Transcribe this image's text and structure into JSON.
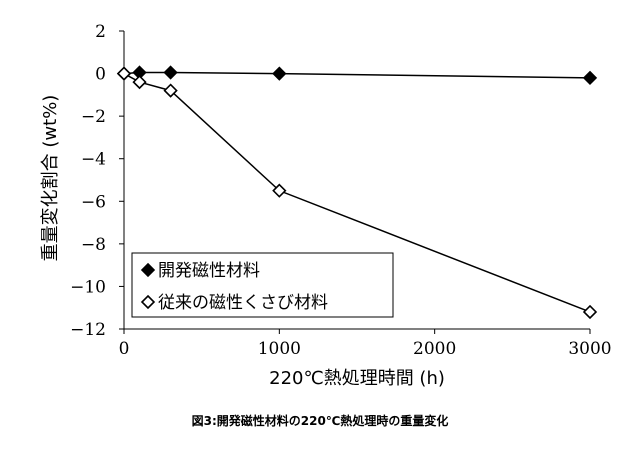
{
  "caption": "図3:開発磁性材料の220℃熱処理時の重量変化",
  "chart_data": {
    "type": "line",
    "xlabel": "220℃熱処理時間 (h)",
    "ylabel": "重量変化割合 (wt%)",
    "xlim": [
      0,
      3000
    ],
    "ylim": [
      -12,
      2
    ],
    "xticks": [
      "0",
      "1000",
      "2000",
      "3000"
    ],
    "yticks": [
      "2",
      "0",
      "-2",
      "-4",
      "-6",
      "-8",
      "-10",
      "-12"
    ],
    "grid": false,
    "legend_position": "bottom-left",
    "series": [
      {
        "name": "開発磁性材料",
        "marker": "filled-diamond",
        "color": "#000000",
        "x": [
          0,
          100,
          300,
          1000,
          3000
        ],
        "y": [
          0,
          0.05,
          0.05,
          0,
          -0.2
        ]
      },
      {
        "name": "従来の磁性くさび材料",
        "marker": "open-diamond",
        "color": "#000000",
        "x": [
          0,
          100,
          300,
          1000,
          3000
        ],
        "y": [
          0,
          -0.4,
          -0.8,
          -5.5,
          -11.2
        ]
      }
    ]
  }
}
